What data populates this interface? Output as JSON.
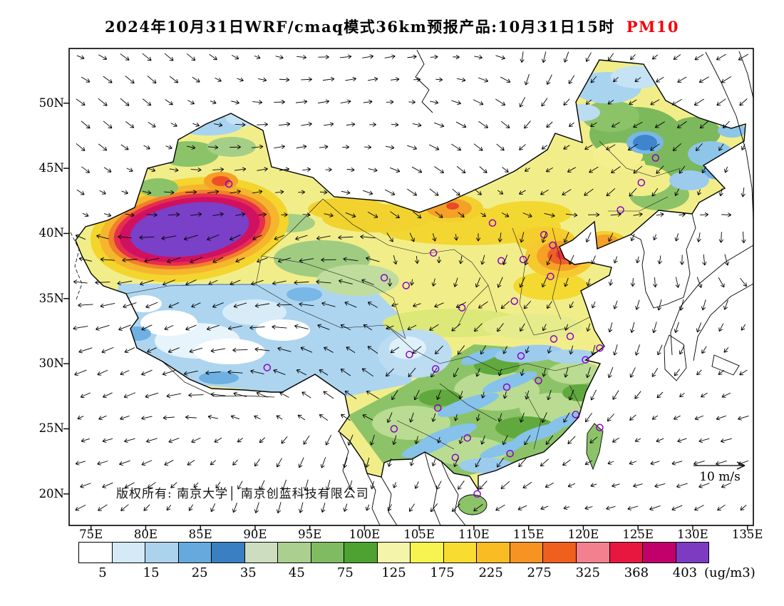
{
  "title": {
    "main": "2024年10月31日WRF/cmaq模式36km预报产品:10月31日15时",
    "pollutant": "PM10"
  },
  "map": {
    "lat_labels": [
      "50N",
      "45N",
      "40N",
      "35N",
      "30N",
      "25N",
      "20N"
    ],
    "lon_labels": [
      "75E",
      "80E",
      "85E",
      "90E",
      "95E",
      "100E",
      "105E",
      "110E",
      "115E",
      "120E",
      "125E",
      "130E",
      "135E"
    ],
    "copyright": "版权所有: 南京大学│ 南京创蓝科技有限公司",
    "wind_legend": {
      "label": "10 m/s"
    },
    "stations": [
      [
        87.6,
        43.8
      ],
      [
        91.1,
        29.7
      ],
      [
        101.8,
        36.6
      ],
      [
        103.8,
        36.0
      ],
      [
        106.3,
        38.5
      ],
      [
        108.9,
        34.3
      ],
      [
        112.5,
        37.9
      ],
      [
        116.4,
        39.9
      ],
      [
        117.2,
        39.1
      ],
      [
        114.5,
        38.0
      ],
      [
        117.0,
        36.7
      ],
      [
        113.7,
        34.8
      ],
      [
        117.3,
        31.9
      ],
      [
        118.8,
        32.1
      ],
      [
        121.5,
        31.2
      ],
      [
        120.2,
        30.3
      ],
      [
        114.3,
        30.6
      ],
      [
        113.0,
        28.2
      ],
      [
        115.9,
        28.7
      ],
      [
        119.3,
        26.1
      ],
      [
        113.3,
        23.1
      ],
      [
        108.3,
        22.8
      ],
      [
        106.7,
        26.6
      ],
      [
        104.1,
        30.7
      ],
      [
        106.5,
        29.6
      ],
      [
        102.7,
        25.0
      ],
      [
        110.3,
        20.0
      ],
      [
        123.4,
        41.8
      ],
      [
        125.3,
        43.9
      ],
      [
        126.6,
        45.8
      ],
      [
        111.7,
        40.8
      ],
      [
        121.5,
        25.1
      ],
      [
        109.4,
        24.3
      ]
    ]
  },
  "colorbar": {
    "unit": "(ug/m3)",
    "tick_labels": [
      "5",
      "15",
      "25",
      "35",
      "45",
      "75",
      "125",
      "175",
      "225",
      "275",
      "325",
      "368",
      "403"
    ],
    "colors": [
      "#ffffff",
      "#d5eaf6",
      "#abd3ee",
      "#66aadd",
      "#3a7fc2",
      "#ccddc0",
      "#aacf8e",
      "#7fbb60",
      "#4ea232",
      "#f4f4aa",
      "#f7f350",
      "#f8dd30",
      "#f9bc22",
      "#f79322",
      "#ef5f1e",
      "#f2808f",
      "#e8173f",
      "#c2006b",
      "#7d3bc2"
    ]
  },
  "accents": {
    "pollutant_red": "#f50008",
    "station_purple": "#8b00c8"
  }
}
